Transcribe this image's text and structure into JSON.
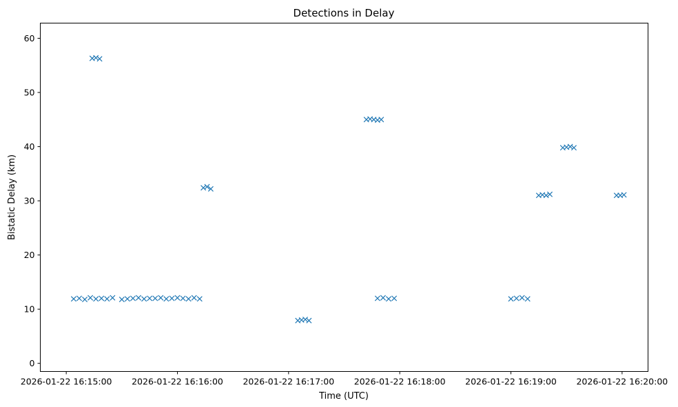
{
  "chart_data": {
    "type": "scatter",
    "title": "Detections in Delay",
    "xlabel": "Time (UTC)",
    "ylabel": "Bistatic Delay (km)",
    "x_ticks": [
      "2026-01-22 16:15:00",
      "2026-01-22 16:16:00",
      "2026-01-22 16:17:00",
      "2026-01-22 16:18:00",
      "2026-01-22 16:19:00",
      "2026-01-22 16:20:00"
    ],
    "y_ticks": [
      0,
      10,
      20,
      30,
      40,
      50,
      60
    ],
    "xlim": [
      "2026-01-22 16:14:46",
      "2026-01-22 16:20:14"
    ],
    "ylim": [
      -1.5,
      62.8
    ],
    "grid": false,
    "marker": "x",
    "color": "#1f77b4",
    "series": [
      {
        "points": [
          [
            "16:15:04",
            11.9
          ],
          [
            "16:15:07",
            12.0
          ],
          [
            "16:15:10",
            11.8
          ],
          [
            "16:15:13",
            12.1
          ],
          [
            "16:15:16",
            11.9
          ],
          [
            "16:15:19",
            12.0
          ],
          [
            "16:15:22",
            11.9
          ],
          [
            "16:15:25",
            12.1
          ],
          [
            "16:15:30",
            11.8
          ],
          [
            "16:15:33",
            11.9
          ],
          [
            "16:15:36",
            12.0
          ],
          [
            "16:15:39",
            12.1
          ],
          [
            "16:15:42",
            11.9
          ],
          [
            "16:15:45",
            12.0
          ],
          [
            "16:15:48",
            12.0
          ],
          [
            "16:15:51",
            12.1
          ],
          [
            "16:15:54",
            11.9
          ],
          [
            "16:15:57",
            12.0
          ],
          [
            "16:16:00",
            12.1
          ],
          [
            "16:16:03",
            12.0
          ],
          [
            "16:16:06",
            11.9
          ],
          [
            "16:16:09",
            12.1
          ],
          [
            "16:16:12",
            11.9
          ],
          [
            "16:17:48",
            12.0
          ],
          [
            "16:17:51",
            12.1
          ],
          [
            "16:17:54",
            11.9
          ],
          [
            "16:17:57",
            12.0
          ],
          [
            "16:17:05",
            7.9
          ],
          [
            "16:17:07",
            8.0
          ],
          [
            "16:17:09",
            8.1
          ],
          [
            "16:17:11",
            7.9
          ],
          [
            "16:19:00",
            11.9
          ],
          [
            "16:19:03",
            12.0
          ],
          [
            "16:19:06",
            12.1
          ],
          [
            "16:19:09",
            11.9
          ],
          [
            "16:19:28",
            39.8
          ],
          [
            "16:19:30",
            39.9
          ],
          [
            "16:19:32",
            40.0
          ],
          [
            "16:19:34",
            39.8
          ],
          [
            "16:15:14",
            56.3
          ],
          [
            "16:15:16",
            56.4
          ],
          [
            "16:15:18",
            56.2
          ],
          [
            "16:16:14",
            32.4
          ],
          [
            "16:16:16",
            32.6
          ],
          [
            "16:16:18",
            32.2
          ],
          [
            "16:17:42",
            45.0
          ],
          [
            "16:17:44",
            45.1
          ],
          [
            "16:17:46",
            45.0
          ],
          [
            "16:17:48",
            44.9
          ],
          [
            "16:17:50",
            45.0
          ],
          [
            "16:19:15",
            31.0
          ],
          [
            "16:19:17",
            31.1
          ],
          [
            "16:19:19",
            31.0
          ],
          [
            "16:19:21",
            31.2
          ],
          [
            "16:19:57",
            31.0
          ],
          [
            "16:19:59",
            31.0
          ],
          [
            "16:20:01",
            31.1
          ]
        ]
      }
    ]
  }
}
